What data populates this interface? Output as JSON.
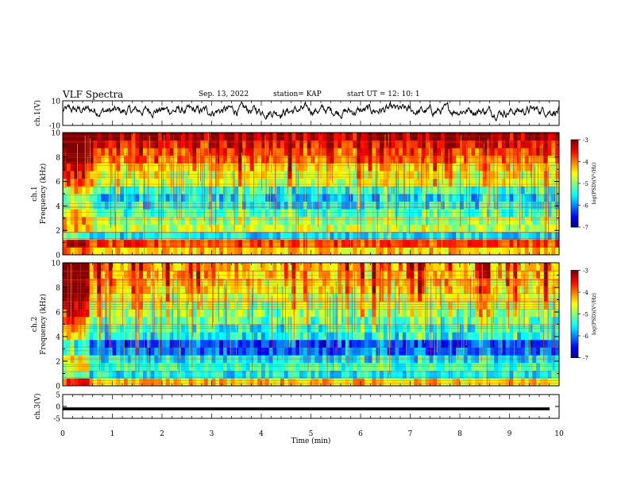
{
  "header": {
    "title": "VLF Spectra",
    "date": "Sep. 13, 2022",
    "station": "station= KAP",
    "start": "start  UT =   12: 10: 1"
  },
  "chart_data": [
    {
      "type": "line",
      "ylabel": "ch.1(V)",
      "ylim": [
        -10,
        10
      ],
      "yticks": [
        "10",
        "-10"
      ],
      "xlim": [
        0,
        10
      ],
      "trace": "noisy waveform around ~2 V",
      "color": "#000000"
    },
    {
      "type": "heatmap",
      "ylabel_line1": "ch.1",
      "ylabel_line2": "Frequency  (kHz)",
      "ylim": [
        0,
        10
      ],
      "yticks": [
        "0",
        "2",
        "4",
        "6",
        "8",
        "10"
      ],
      "xlim": [
        0,
        10
      ],
      "colorbar": {
        "label": "log(PSD)(V²/Hz)",
        "range": [
          -7,
          -3
        ],
        "ticks": [
          "-3",
          "-4",
          "-5",
          "-6",
          "-7"
        ]
      },
      "bands_power": [
        -4.3,
        -3.8,
        -5.6,
        -4.8,
        -5.0,
        -5.3,
        -5.6,
        -5.8,
        -5.5,
        -4.9,
        -4.8,
        -4.6,
        -4.2,
        -4.0,
        -3.7,
        -3.4
      ]
    },
    {
      "type": "heatmap",
      "ylabel_line1": "ch.2",
      "ylabel_line2": "Frequency  (kHz)",
      "ylim": [
        0,
        10
      ],
      "yticks": [
        "0",
        "2",
        "4",
        "6",
        "8",
        "10"
      ],
      "xlim": [
        0,
        10
      ],
      "colorbar": {
        "label": "log(PSD)(V²/Hz)",
        "range": [
          -7,
          -3
        ],
        "ticks": [
          "-3",
          "-4",
          "-5",
          "-6",
          "-7"
        ]
      },
      "bands_power": [
        -4.3,
        -5.5,
        -5.3,
        -5.6,
        -6.2,
        -6.4,
        -5.6,
        -5.5,
        -5.3,
        -5.1,
        -5.0,
        -4.9,
        -4.7,
        -4.6,
        -4.5,
        -4.5
      ]
    },
    {
      "type": "line",
      "ylabel": "ch.3(V)",
      "ylim": [
        -5,
        5
      ],
      "yticks": [
        "5",
        "0",
        "-5"
      ],
      "xlim": [
        0,
        10
      ],
      "trace": "thick flat band near -1 V",
      "color": "#000000"
    }
  ],
  "xaxis": {
    "label": "Time  (min)",
    "ticks": [
      "0",
      "1",
      "2",
      "3",
      "4",
      "5",
      "6",
      "7",
      "8",
      "9",
      "10"
    ]
  }
}
